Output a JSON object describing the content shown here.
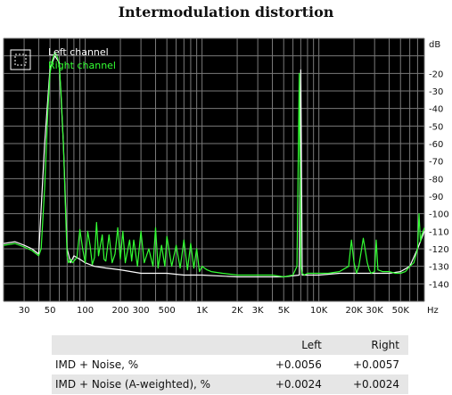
{
  "chart_data": {
    "type": "line",
    "title": "Intermodulation distortion",
    "xlabel": "Hz",
    "ylabel": "dB",
    "xscale": "log",
    "xlim": [
      20,
      80000
    ],
    "ylim": [
      -150,
      0
    ],
    "grid": true,
    "legend_placement": "top-left",
    "background": "#000000",
    "grid_color": "#7a7a7a",
    "x_ticks": [
      {
        "value": 30,
        "label": "30"
      },
      {
        "value": 50,
        "label": "50"
      },
      {
        "value": 100,
        "label": "100"
      },
      {
        "value": 200,
        "label": "200"
      },
      {
        "value": 300,
        "label": "300"
      },
      {
        "value": 500,
        "label": "500"
      },
      {
        "value": 1000,
        "label": "1K"
      },
      {
        "value": 2000,
        "label": "2K"
      },
      {
        "value": 3000,
        "label": "3K"
      },
      {
        "value": 5000,
        "label": "5K"
      },
      {
        "value": 10000,
        "label": "10K"
      },
      {
        "value": 20000,
        "label": "20K"
      },
      {
        "value": 30000,
        "label": "30K"
      },
      {
        "value": 50000,
        "label": "50K"
      }
    ],
    "y_ticks": [
      {
        "value": -20,
        "label": "-20"
      },
      {
        "value": -30,
        "label": "-30"
      },
      {
        "value": -40,
        "label": "-40"
      },
      {
        "value": -50,
        "label": "-50"
      },
      {
        "value": -60,
        "label": "-60"
      },
      {
        "value": -70,
        "label": "-70"
      },
      {
        "value": -80,
        "label": "-80"
      },
      {
        "value": -90,
        "label": "-90"
      },
      {
        "value": -100,
        "label": "-100"
      },
      {
        "value": -110,
        "label": "-110"
      },
      {
        "value": -120,
        "label": "-120"
      },
      {
        "value": -130,
        "label": "-130"
      },
      {
        "value": -140,
        "label": "-140"
      }
    ],
    "series": [
      {
        "name": "Left channel",
        "color": "#ffffff",
        "x": [
          20,
          25,
          30,
          35,
          40,
          45,
          50,
          55,
          60,
          65,
          70,
          75,
          80,
          90,
          100,
          120,
          150,
          200,
          300,
          500,
          700,
          1000,
          2000,
          3000,
          5000,
          6800,
          7000,
          7200,
          10000,
          15000,
          20000,
          30000,
          40000,
          50000,
          60000,
          70000,
          80000
        ],
        "y": [
          -117,
          -116,
          -118,
          -120,
          -123,
          -60,
          -17,
          -10,
          -14,
          -60,
          -120,
          -128,
          -124,
          -126,
          -128,
          -130,
          -131,
          -132,
          -134,
          -134,
          -135,
          -135,
          -136,
          -136,
          -136,
          -135,
          -18,
          -135,
          -135,
          -134,
          -134,
          -134,
          -134,
          -133,
          -130,
          -120,
          -110
        ]
      },
      {
        "name": "Right channel",
        "color": "#33ff33",
        "x": [
          20,
          25,
          30,
          35,
          40,
          42,
          45,
          48,
          50,
          52,
          55,
          58,
          60,
          62,
          65,
          68,
          70,
          72,
          75,
          78,
          80,
          85,
          88,
          90,
          95,
          100,
          105,
          110,
          115,
          120,
          125,
          130,
          140,
          145,
          150,
          160,
          170,
          180,
          190,
          200,
          210,
          220,
          240,
          250,
          260,
          280,
          300,
          320,
          350,
          380,
          400,
          420,
          450,
          480,
          500,
          550,
          600,
          650,
          700,
          750,
          800,
          850,
          900,
          950,
          1000,
          1100,
          1200,
          1500,
          2000,
          3000,
          4000,
          5000,
          6000,
          6500,
          6800,
          7000,
          7200,
          7500,
          8000,
          10000,
          12000,
          15000,
          18000,
          19000,
          20000,
          21000,
          22000,
          24000,
          26000,
          27000,
          28000,
          30000,
          31000,
          32000,
          35000,
          40000,
          45000,
          50000,
          55000,
          60000,
          65000,
          70000,
          72000,
          74000,
          76000,
          80000
        ],
        "y": [
          -118,
          -117,
          -119,
          -121,
          -124,
          -120,
          -85,
          -40,
          -20,
          -13,
          -8,
          -11,
          -16,
          -30,
          -60,
          -100,
          -124,
          -128,
          -126,
          -128,
          -127,
          -125,
          -115,
          -109,
          -120,
          -128,
          -110,
          -118,
          -129,
          -125,
          -105,
          -124,
          -112,
          -126,
          -127,
          -112,
          -128,
          -123,
          -108,
          -126,
          -110,
          -128,
          -115,
          -127,
          -115,
          -130,
          -110,
          -128,
          -120,
          -130,
          -108,
          -131,
          -118,
          -130,
          -113,
          -130,
          -118,
          -131,
          -115,
          -132,
          -117,
          -131,
          -120,
          -133,
          -130,
          -132,
          -133,
          -134,
          -135,
          -135,
          -135,
          -136,
          -135,
          -130,
          -20,
          -130,
          -134,
          -135,
          -134,
          -134,
          -134,
          -133,
          -130,
          -115,
          -128,
          -134,
          -130,
          -114,
          -128,
          -132,
          -134,
          -133,
          -115,
          -132,
          -133,
          -133,
          -134,
          -134,
          -133,
          -130,
          -128,
          -120,
          -100,
          -116,
          -112,
          -108
        ]
      }
    ]
  },
  "table": {
    "columns": [
      "",
      "Left",
      "Right"
    ],
    "rows": [
      {
        "label": "IMD + Noise, %",
        "left": "+0.0056",
        "right": "+0.0057"
      },
      {
        "label": "IMD + Noise (A-weighted), %",
        "left": "+0.0024",
        "right": "+0.0024"
      }
    ]
  }
}
